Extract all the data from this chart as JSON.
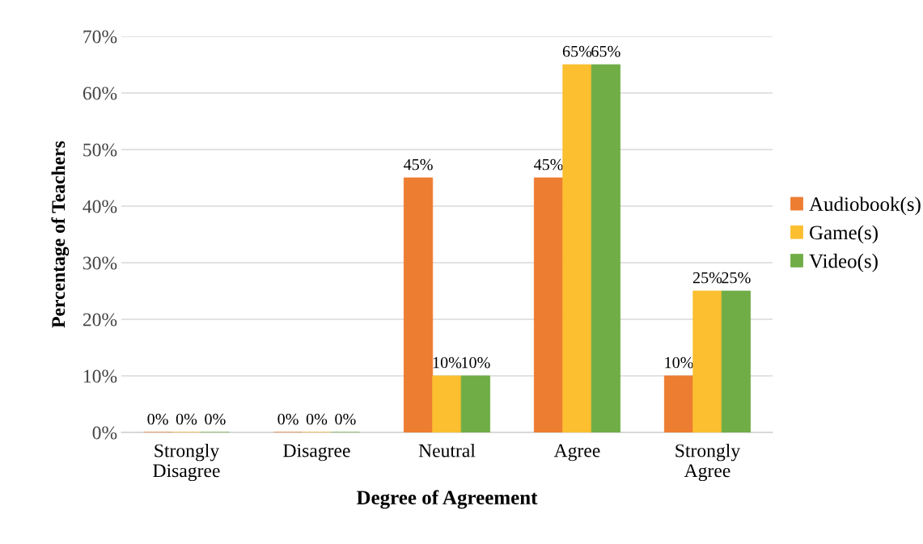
{
  "chart_data": {
    "type": "bar",
    "xlabel": "Degree of Agreement",
    "ylabel": "Percentage of Teachers",
    "categories": [
      "Strongly\nDisagree",
      "Disagree",
      "Neutral",
      "Agree",
      "Strongly\nAgree"
    ],
    "series": [
      {
        "name": "Audiobook(s)",
        "color": "#ed7d31",
        "values": [
          0,
          0,
          45,
          45,
          10
        ],
        "value_labels": [
          "0%",
          "0%",
          "45%",
          "45%",
          "10%"
        ]
      },
      {
        "name": "Game(s)",
        "color": "#fbbf2f",
        "values": [
          0,
          0,
          10,
          65,
          25
        ],
        "value_labels": [
          "0%",
          "0%",
          "10%",
          "65%",
          "25%"
        ]
      },
      {
        "name": "Video(s)",
        "color": "#70ad47",
        "values": [
          0,
          0,
          10,
          65,
          25
        ],
        "value_labels": [
          "0%",
          "0%",
          "10%",
          "65%",
          "25%"
        ]
      }
    ],
    "ylim": [
      0,
      70
    ],
    "yticks": [
      {
        "value": 0,
        "label": "0%"
      },
      {
        "value": 10,
        "label": "10%"
      },
      {
        "value": 20,
        "label": "20%"
      },
      {
        "value": 30,
        "label": "30%"
      },
      {
        "value": 40,
        "label": "40%"
      },
      {
        "value": 50,
        "label": "50%"
      },
      {
        "value": 60,
        "label": "60%"
      },
      {
        "value": 70,
        "label": "70%"
      }
    ],
    "grid": "y",
    "legend": "right"
  }
}
